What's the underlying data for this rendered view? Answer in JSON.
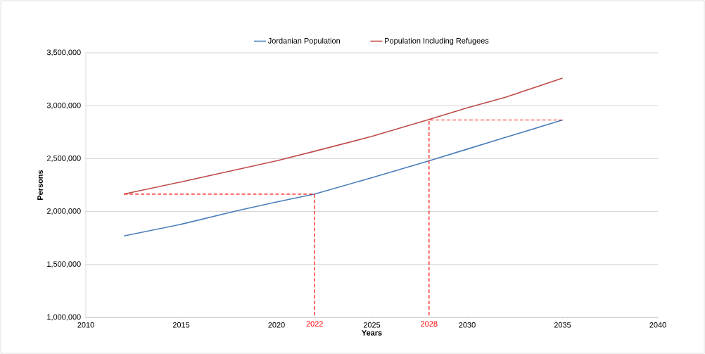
{
  "chart_data": {
    "type": "line",
    "xlabel": "Years",
    "ylabel": "Persons",
    "xlim": [
      2010,
      2040
    ],
    "xticks": [
      2010,
      2015,
      2020,
      2025,
      2030,
      2035,
      2040
    ],
    "ylim": [
      1000000,
      3500000
    ],
    "yticks": [
      {
        "value": 1000000,
        "label": "1,000,000"
      },
      {
        "value": 1500000,
        "label": "1,500,000"
      },
      {
        "value": 2000000,
        "label": "2,000,000"
      },
      {
        "value": 2500000,
        "label": "2,500,000"
      },
      {
        "value": 3000000,
        "label": "3,000,000"
      },
      {
        "value": 3500000,
        "label": "3,500,000"
      }
    ],
    "grid": "y",
    "legend": "top",
    "marker": "none",
    "series": [
      {
        "name": "Jordanian Population",
        "color": "#4a7ebb",
        "x": [
          2012,
          2015,
          2018,
          2020,
          2022,
          2025,
          2028,
          2030,
          2032,
          2035
        ],
        "values": [
          1770000,
          1880000,
          2010000,
          2090000,
          2165000,
          2320000,
          2480000,
          2590000,
          2700000,
          2865000
        ]
      },
      {
        "name": "Population Including Refugees",
        "color": "#be4b48",
        "x": [
          2012,
          2015,
          2018,
          2020,
          2022,
          2025,
          2028,
          2030,
          2032,
          2035
        ],
        "values": [
          2165000,
          2280000,
          2400000,
          2480000,
          2570000,
          2710000,
          2870000,
          2980000,
          3080000,
          3260000
        ]
      },
      {
        "color": "#ff0000",
        "line_style": "dashed",
        "x": [
          2012,
          2022,
          2022
        ],
        "values": [
          2165000,
          2165000,
          1000000
        ]
      },
      {
        "color": "#ff0000",
        "line_style": "dashed",
        "x": [
          2035,
          2028,
          2028
        ],
        "values": [
          2865000,
          2865000,
          1000000
        ]
      }
    ],
    "annotations": [
      {
        "text": "2022",
        "x": 2022,
        "y": 1000000
      },
      {
        "text": "2028",
        "x": 2028,
        "y": 1000000
      }
    ]
  }
}
